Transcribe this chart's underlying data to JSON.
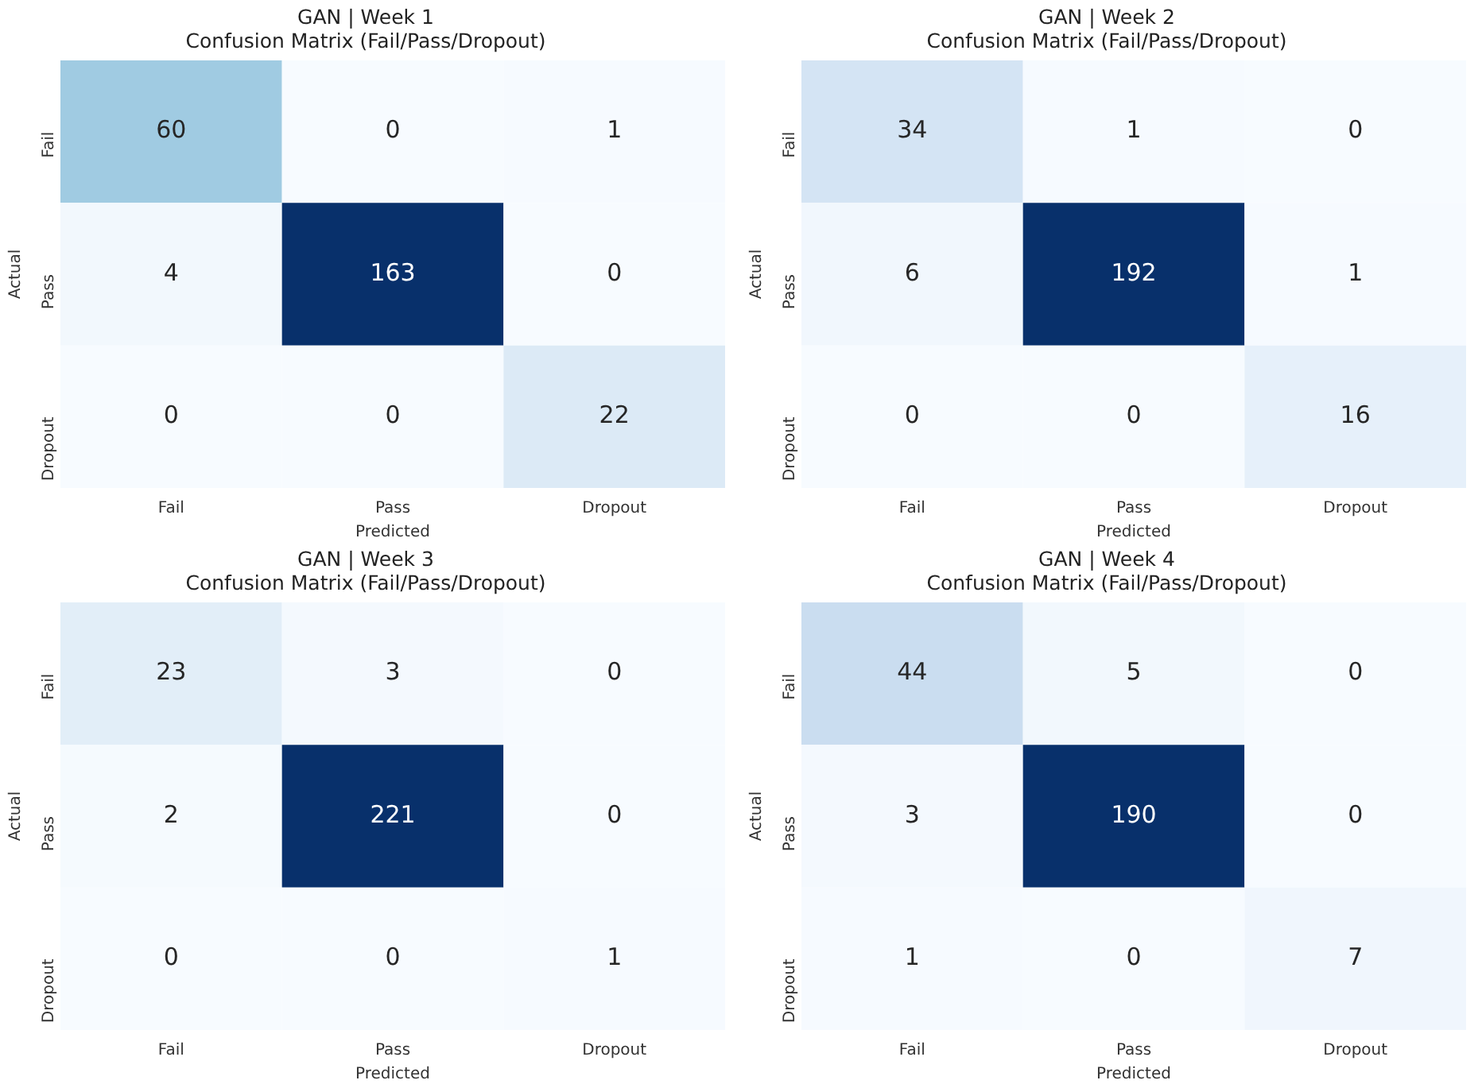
{
  "chart_data": [
    {
      "type": "heatmap",
      "title": "GAN | Week 1",
      "subtitle": "Confusion Matrix (Fail/Pass/Dropout)",
      "xlabel": "Predicted",
      "ylabel": "Actual",
      "categories": [
        "Fail",
        "Pass",
        "Dropout"
      ],
      "y_categories": [
        "Fail",
        "Pass",
        "Dropout"
      ],
      "data_labels": true,
      "cells": [
        [
          60,
          0,
          1
        ],
        [
          4,
          163,
          0
        ],
        [
          0,
          0,
          22
        ]
      ]
    },
    {
      "type": "heatmap",
      "title": "GAN | Week 2",
      "subtitle": "Confusion Matrix (Fail/Pass/Dropout)",
      "xlabel": "Predicted",
      "ylabel": "Actual",
      "categories": [
        "Fail",
        "Pass",
        "Dropout"
      ],
      "y_categories": [
        "Fail",
        "Pass",
        "Dropout"
      ],
      "data_labels": true,
      "cells": [
        [
          34,
          1,
          0
        ],
        [
          6,
          192,
          1
        ],
        [
          0,
          0,
          16
        ]
      ]
    },
    {
      "type": "heatmap",
      "title": "GAN | Week 3",
      "subtitle": "Confusion Matrix (Fail/Pass/Dropout)",
      "xlabel": "Predicted",
      "ylabel": "Actual",
      "categories": [
        "Fail",
        "Pass",
        "Dropout"
      ],
      "y_categories": [
        "Fail",
        "Pass",
        "Dropout"
      ],
      "data_labels": true,
      "cells": [
        [
          23,
          3,
          0
        ],
        [
          2,
          221,
          0
        ],
        [
          0,
          0,
          1
        ]
      ]
    },
    {
      "type": "heatmap",
      "title": "GAN | Week 4",
      "subtitle": "Confusion Matrix (Fail/Pass/Dropout)",
      "xlabel": "Predicted",
      "ylabel": "Actual",
      "categories": [
        "Fail",
        "Pass",
        "Dropout"
      ],
      "y_categories": [
        "Fail",
        "Pass",
        "Dropout"
      ],
      "data_labels": true,
      "cells": [
        [
          44,
          5,
          0
        ],
        [
          3,
          190,
          0
        ],
        [
          1,
          0,
          7
        ]
      ]
    }
  ]
}
